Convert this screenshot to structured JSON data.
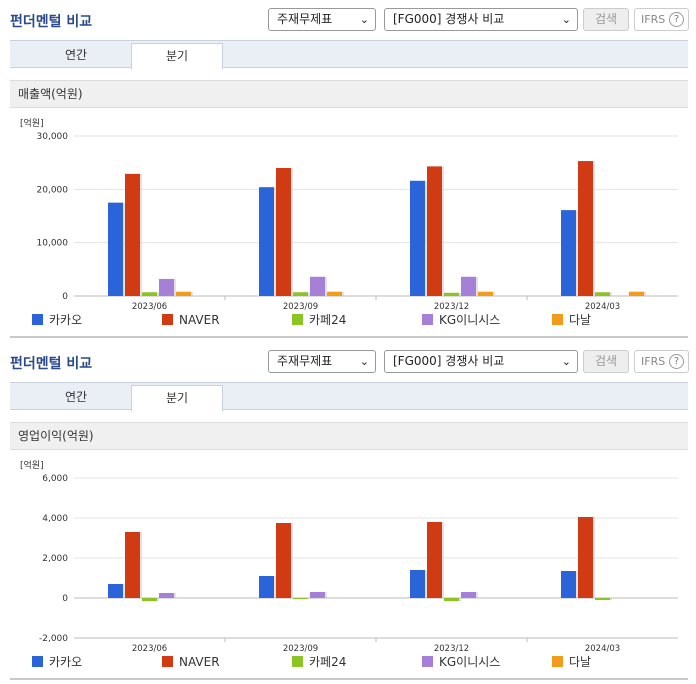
{
  "header": {
    "title": "펀더멘털 비교",
    "select_type": "주재무제표",
    "select_group": "[FG000] 경쟁사 비교",
    "search_label": "검색",
    "ifrs_label": "IFRS",
    "help_glyph": "?"
  },
  "tabs": [
    {
      "label": "연간"
    },
    {
      "label": "분기"
    }
  ],
  "colors": {
    "카카오": "#2a64d8",
    "NAVER": "#d13b14",
    "카페24": "#8cc424",
    "KG이니시스": "#a67fd6",
    "다날": "#f39c1b"
  },
  "chart_data": [
    {
      "type": "bar",
      "title": "매출액(억원)",
      "unit": "[억원]",
      "categories": [
        "2023/06",
        "2023/09",
        "2023/12",
        "2024/03"
      ],
      "ylim": [
        0,
        30000
      ],
      "yticks": [
        "30,000",
        "20,000",
        "10,000",
        "0"
      ],
      "ytick_values": [
        30000,
        20000,
        10000,
        0
      ],
      "series": [
        {
          "name": "카카오",
          "values": [
            17500,
            20400,
            21600,
            16100
          ]
        },
        {
          "name": "NAVER",
          "values": [
            22900,
            24000,
            24300,
            25300
          ]
        },
        {
          "name": "카페24",
          "values": [
            700,
            700,
            600,
            700
          ]
        },
        {
          "name": "KG이니시스",
          "values": [
            3200,
            3600,
            3600,
            0
          ]
        },
        {
          "name": "다날",
          "values": [
            800,
            800,
            800,
            800
          ]
        }
      ]
    },
    {
      "type": "bar",
      "title": "영업이익(억원)",
      "unit": "[억원]",
      "categories": [
        "2023/06",
        "2023/09",
        "2023/12",
        "2024/03"
      ],
      "ylim": [
        -2000,
        6000
      ],
      "yticks": [
        "6,000",
        "4,000",
        "2,000",
        "0",
        "-2,000"
      ],
      "ytick_values": [
        6000,
        4000,
        2000,
        0,
        -2000
      ],
      "series": [
        {
          "name": "카카오",
          "values": [
            700,
            1100,
            1400,
            1350
          ]
        },
        {
          "name": "NAVER",
          "values": [
            3300,
            3750,
            3800,
            4050
          ]
        },
        {
          "name": "카페24",
          "values": [
            -150,
            -50,
            -150,
            -100
          ]
        },
        {
          "name": "KG이니시스",
          "values": [
            250,
            300,
            300,
            0
          ]
        },
        {
          "name": "다날",
          "values": [
            0,
            0,
            0,
            0
          ]
        }
      ]
    }
  ]
}
